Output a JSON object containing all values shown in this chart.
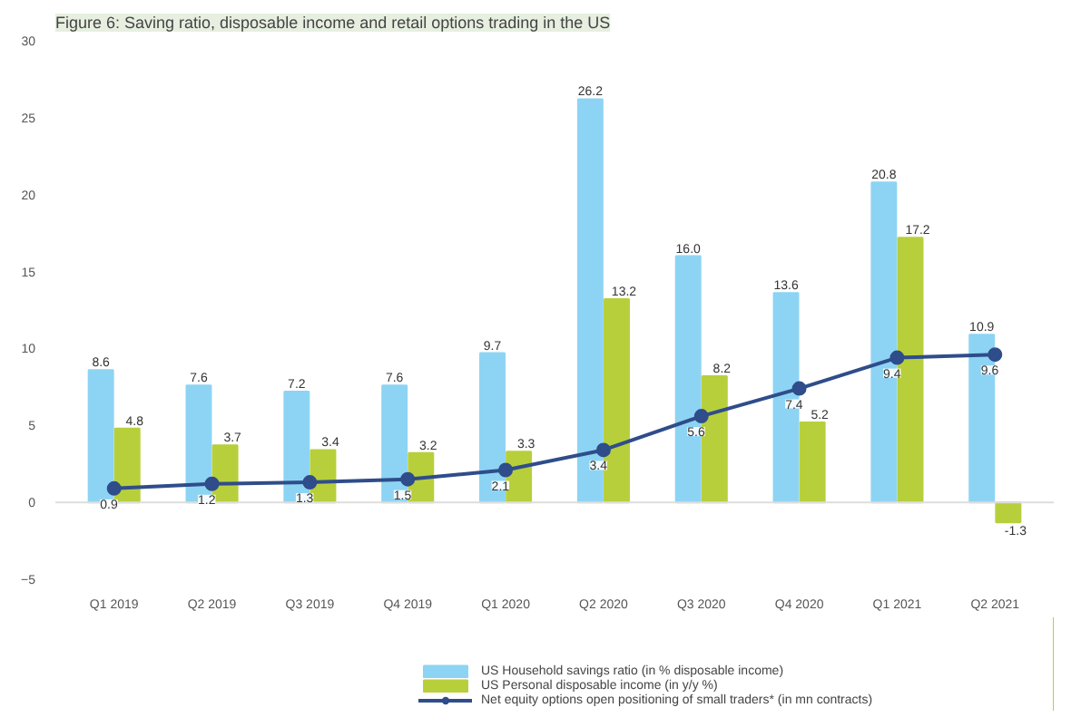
{
  "chart_data": {
    "type": "bar",
    "title": "Figure 6: Saving ratio, disposable income and retail options trading in the US",
    "categories": [
      "Q1 2019",
      "Q2 2019",
      "Q3 2019",
      "Q4 2019",
      "Q1 2020",
      "Q2 2020",
      "Q3 2020",
      "Q4 2020",
      "Q1 2021",
      "Q2 2021"
    ],
    "series": [
      {
        "name": "US Household savings ratio (in % disposable income)",
        "color": "#8dd4f4",
        "values": [
          8.6,
          7.6,
          7.2,
          7.6,
          9.7,
          26.2,
          16.0,
          13.6,
          20.8,
          10.9
        ],
        "value_labels": [
          "8.6",
          "7.6",
          "7.2",
          "7.6",
          "9.7",
          "26.2",
          "16.0",
          "13.6",
          "20.8",
          "10.9"
        ]
      },
      {
        "name": "US Personal disposable income (in y/y %)",
        "color": "#b8cf3c",
        "values": [
          4.8,
          3.7,
          3.4,
          3.2,
          3.3,
          13.2,
          8.2,
          5.2,
          17.2,
          -1.3
        ]
      },
      {
        "name": "Net equity options open positioning of small traders* (in mn contracts)",
        "type": "line",
        "marker": "circle",
        "color": "#2f4d8a",
        "values": [
          0.9,
          1.2,
          1.3,
          1.5,
          2.1,
          3.4,
          5.6,
          7.4,
          9.4,
          9.6
        ]
      }
    ],
    "ylim": [
      -5,
      30
    ],
    "yticks": [
      -5,
      0,
      5,
      10,
      15,
      20,
      25,
      30
    ],
    "ref_lines": [
      {
        "axis": "y",
        "value": 0,
        "color": "#dddddd"
      }
    ],
    "data_labels": true,
    "grid": false,
    "legend": "bottom"
  }
}
